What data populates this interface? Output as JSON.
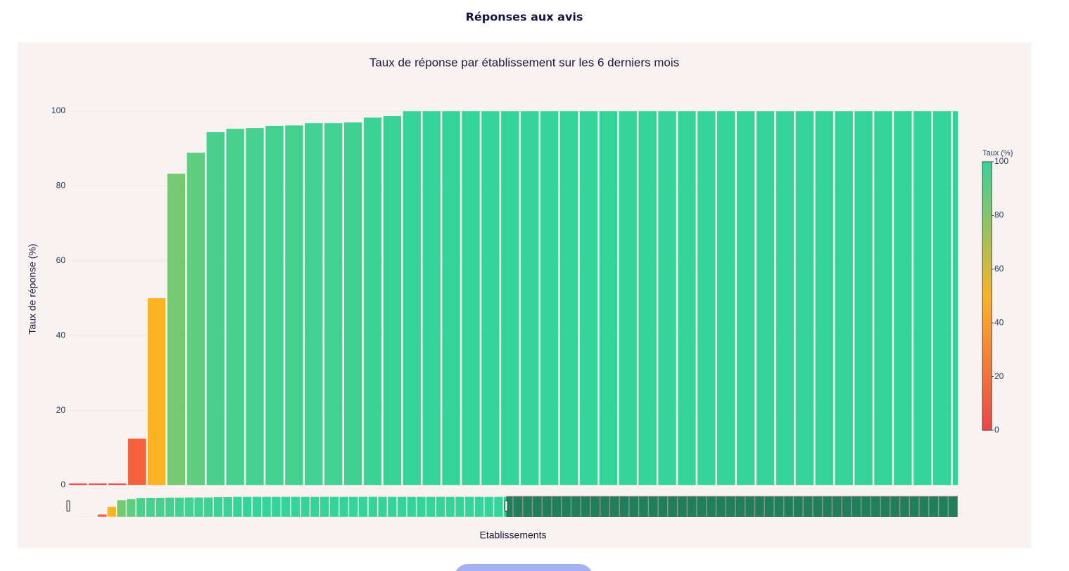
{
  "header": {
    "title": "Réponses aux avis"
  },
  "chart_data": {
    "type": "bar",
    "title": "Taux de réponse par établissement sur les 6 derniers mois",
    "x_label": "Etablissements",
    "y_label": "Taux de réponse (%)",
    "values": [
      0.5,
      0.5,
      0.5,
      12.5,
      50,
      83.3,
      88.9,
      94.4,
      95.3,
      95.5,
      96.1,
      96.2,
      96.8,
      96.8,
      97,
      98.3,
      98.7,
      100,
      100,
      100,
      100,
      100,
      100,
      100,
      100,
      100,
      100,
      100,
      100,
      100,
      100,
      100,
      100,
      100,
      100,
      100,
      100,
      100,
      100,
      100,
      100,
      100,
      100,
      100,
      100,
      100,
      100,
      100,
      100,
      100,
      100,
      100,
      100,
      100,
      100,
      100,
      100,
      100,
      100,
      100,
      100,
      100,
      100,
      100,
      100,
      100,
      100,
      100,
      100,
      100,
      100,
      100,
      100,
      100,
      100,
      100,
      100,
      100,
      100,
      100,
      100,
      100,
      100,
      100,
      100,
      100,
      100,
      100,
      100,
      100,
      100,
      100
    ],
    "xlim": [
      -0.5,
      44.8
    ],
    "ylim": [
      0,
      105
    ],
    "yticks": [
      0,
      20,
      40,
      60,
      80,
      100
    ],
    "grid": true,
    "colorscale": [
      [
        0,
        "#ef4444"
      ],
      [
        0.5,
        "#fbb324"
      ],
      [
        1,
        "#34d399"
      ]
    ],
    "colorbar": {
      "title": "Taux (%)",
      "range": [
        0,
        100
      ],
      "ticks": [
        0,
        20,
        40,
        60,
        80,
        100
      ]
    },
    "rangeslider": true
  }
}
